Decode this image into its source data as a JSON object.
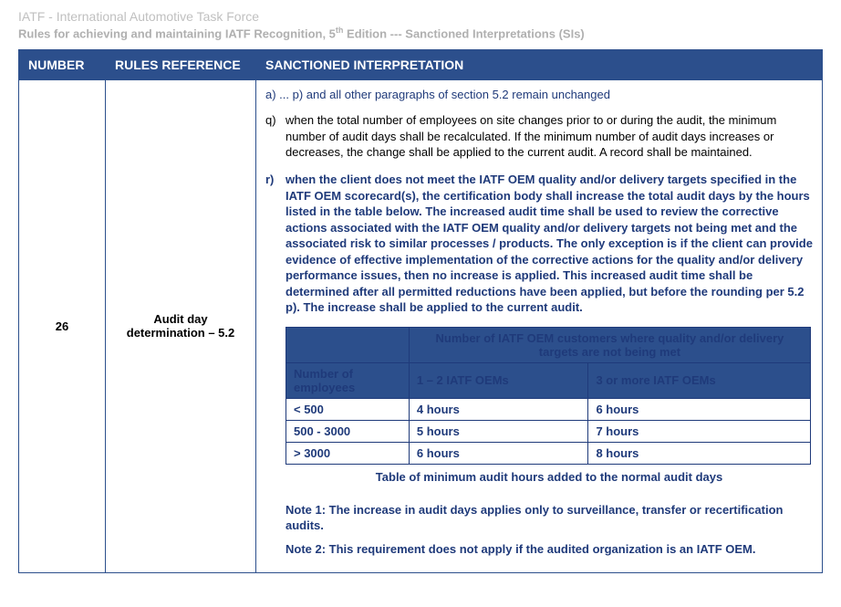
{
  "header": {
    "line1": "IATF - International Automotive Task Force",
    "line2_a": "Rules for achieving and maintaining IATF Recognition, 5",
    "line2_sup": "th",
    "line2_b": " Edition --- Sanctioned Interpretations (SIs)"
  },
  "columns": {
    "number": "NUMBER",
    "reference": "RULES REFERENCE",
    "interpretation": "SANCTIONED INTERPRETATION"
  },
  "row": {
    "number": "26",
    "reference": "Audit day determination – 5.2",
    "intro": "a) ... p)  and all other paragraphs of section 5.2 remain unchanged",
    "clause_q_label": "q)",
    "clause_q_text": "when the total number of employees on site changes prior to or during the audit, the minimum number of audit days shall be recalculated.  If the minimum number of audit days increases or decreases, the change shall be applied to the current audit.  A record shall be maintained.",
    "clause_r_label": "r)",
    "clause_r_text": "when the client does not meet the IATF OEM quality and/or delivery targets specified in the IATF OEM scorecard(s), the certification body shall increase the total audit days by the hours listed in the table below. The increased audit time shall be used to review the corrective actions associated with the IATF OEM quality and/or delivery targets not being met and the associated risk to similar processes / products. The only exception is if the client can provide evidence of effective implementation of the corrective actions for the quality and/or delivery performance issues, then no increase is applied.  This increased audit time shall be determined after all permitted reductions have been applied, but before the rounding per 5.2 p).  The increase shall be applied to the current audit.",
    "inner_table": {
      "header_merged": "Number of IATF OEM customers where quality and/or delivery targets are not being met",
      "row_header": "Number of employees",
      "col1": "1 – 2 IATF OEMs",
      "col2": "3 or more IATF OEMs",
      "r1c0": "< 500",
      "r1c1": "4 hours",
      "r1c2": "6 hours",
      "r2c0": "500 - 3000",
      "r2c1": "5 hours",
      "r2c2": "7 hours",
      "r3c0": "> 3000",
      "r3c1": "6 hours",
      "r3c2": "8 hours"
    },
    "caption": "Table of minimum audit hours added to the normal audit days",
    "note1": "Note 1:  The increase in audit days applies only to surveillance, transfer or recertification audits.",
    "note2": "Note 2: This requirement does not apply if the audited organization is an IATF OEM."
  }
}
